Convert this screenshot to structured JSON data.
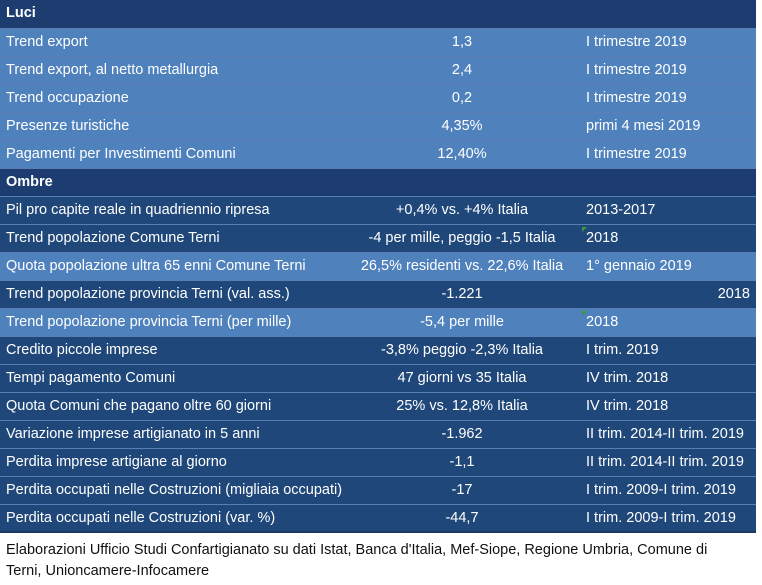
{
  "rows": [
    {
      "type": "header",
      "label": "Luci"
    },
    {
      "type": "light",
      "label": "Trend export",
      "value": "1,3",
      "period": "I trimestre 2019"
    },
    {
      "type": "light",
      "label": "Trend export, al netto metallurgia",
      "value": "2,4",
      "period": "I trimestre 2019"
    },
    {
      "type": "light",
      "label": "Trend occupazione",
      "value": "0,2",
      "period": "I trimestre 2019"
    },
    {
      "type": "light",
      "label": "Presenze turistiche",
      "value": "4,35%",
      "period": "primi 4 mesi 2019"
    },
    {
      "type": "light",
      "label": "Pagamenti per Investimenti Comuni",
      "value": "12,40%",
      "period": "I trimestre 2019"
    },
    {
      "type": "header",
      "label": "Ombre"
    },
    {
      "type": "dark",
      "label": "Pil pro capite reale in quadriennio ripresa",
      "value": "+0,4% vs. +4% Italia",
      "period": "2013-2017"
    },
    {
      "type": "dark",
      "label": "Trend popolazione Comune Terni",
      "value": "-4 per mille, peggio -1,5 Italia",
      "period": "2018",
      "mark": true
    },
    {
      "type": "light",
      "label": "Quota popolazione ultra 65 enni Comune Terni",
      "value": "26,5% residenti vs. 22,6% Italia",
      "period": "1° gennaio 2019"
    },
    {
      "type": "dark",
      "label": "Trend popolazione provincia Terni (val. ass.)",
      "value": "-1.221",
      "period": "2018",
      "right": true
    },
    {
      "type": "light",
      "label": "Trend popolazione provincia Terni (per mille)",
      "value": "-5,4 per mille",
      "period": "2018",
      "mark": true
    },
    {
      "type": "dark",
      "label": "Credito piccole imprese",
      "value": "-3,8% peggio -2,3% Italia",
      "period": "I trim. 2019"
    },
    {
      "type": "dark",
      "label": "Tempi pagamento Comuni",
      "value": "47 giorni vs 35 Italia",
      "period": "IV trim. 2018"
    },
    {
      "type": "dark",
      "label": "Quota Comuni che pagano oltre 60 giorni",
      "value": "25% vs. 12,8% Italia",
      "period": "IV trim. 2018"
    },
    {
      "type": "dark",
      "label": "Variazione imprese artigianato in 5 anni",
      "value": "-1.962",
      "period": "II trim. 2014-II trim. 2019"
    },
    {
      "type": "dark",
      "label": "Perdita imprese artigiane al giorno",
      "value": "-1,1",
      "period": "II trim. 2014-II trim. 2019"
    },
    {
      "type": "dark",
      "label": "Perdita occupati nelle Costruzioni (migliaia occupati)",
      "value": "-17",
      "period": "I trim. 2009-I trim. 2019"
    },
    {
      "type": "dark",
      "label": "Perdita occupati nelle Costruzioni (var. %)",
      "value": "-44,7",
      "period": "I trim. 2009-I trim. 2019"
    }
  ],
  "source": "Elaborazioni Ufficio Studi Confartigianato su dati Istat, Banca d'Italia, Mef-Siope, Regione Umbria, Comune di Terni, Unioncamere-Infocamere"
}
